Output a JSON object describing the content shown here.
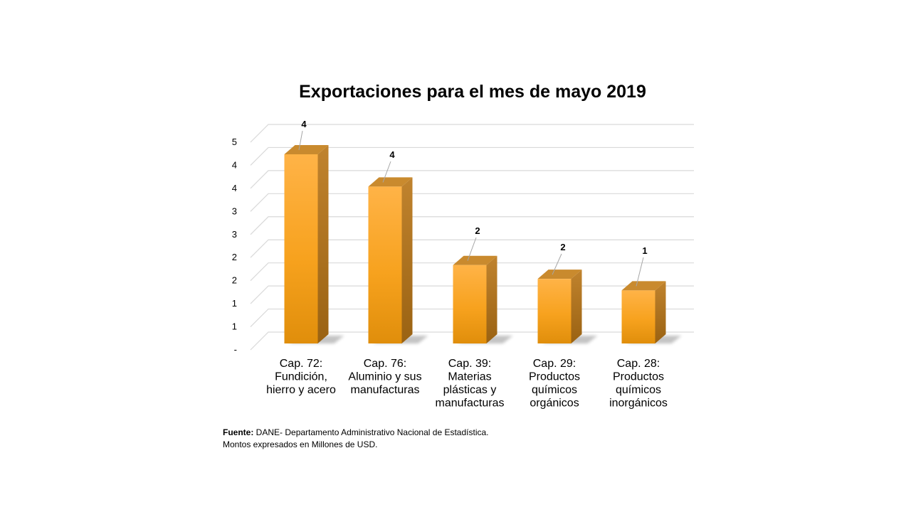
{
  "chart_data": {
    "type": "bar",
    "title": "Exportaciones para el mes de mayo 2019",
    "categories": [
      [
        "Cap. 72:",
        "Fundición,",
        "hierro y acero"
      ],
      [
        "Cap. 76:",
        "Aluminio y sus",
        "manufacturas"
      ],
      [
        "Cap. 39:",
        "Materias",
        "plásticas y",
        "manufacturas"
      ],
      [
        "Cap. 29:",
        "Productos",
        "químicos",
        "orgánicos"
      ],
      [
        "Cap. 28:",
        "Productos",
        "químicos",
        "inorgánicos"
      ]
    ],
    "values": [
      4.3,
      3.6,
      1.9,
      1.6,
      1.35
    ],
    "data_labels": [
      "4",
      "4",
      "2",
      "2",
      "1"
    ],
    "y_ticks": [
      "-",
      "1",
      "1",
      "2",
      "2",
      "3",
      "3",
      "4",
      "4",
      "5"
    ],
    "ylim": [
      0,
      4.5
    ],
    "grid": true,
    "bar_colors": {
      "front_top": "#FFB347",
      "front_mid": "#F7A21E",
      "front_bottom": "#E08E0B",
      "side": "#B3741C",
      "top": "#C98A2E"
    }
  },
  "footnote": {
    "source_label": "Fuente:",
    "source_text": " DANE- Departamento Administrativo Nacional de Estadística.",
    "units_text": "Montos expresados en Millones de USD."
  }
}
